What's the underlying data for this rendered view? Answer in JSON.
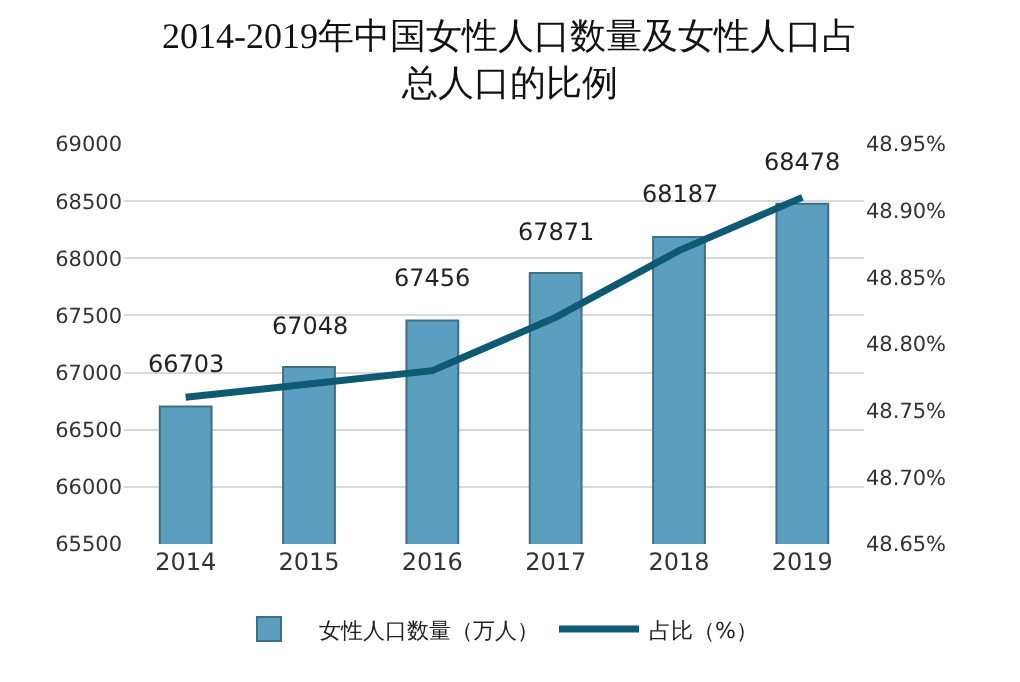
{
  "chart_data": {
    "type": "bar",
    "title": "2014-2019年中国女性人口数量及女性人口占总人口的比例",
    "categories": [
      "2014",
      "2015",
      "2016",
      "2017",
      "2018",
      "2019"
    ],
    "series": [
      {
        "name": "女性人口数量（万人）",
        "color": "#5b9ec0",
        "values": [
          66703,
          67048,
          67456,
          67871,
          68187,
          68478
        ],
        "value_labels": [
          "66703",
          "67048",
          "67456",
          "67871",
          "68187",
          "68478"
        ]
      },
      {
        "name": "占比（%）",
        "type": "line",
        "axis": "y2",
        "color": "#0e5a73",
        "values": [
          48.76,
          48.77,
          48.78,
          48.82,
          48.87,
          48.91
        ]
      }
    ],
    "ylim": [
      65500,
      69000
    ],
    "yticks": [
      65500,
      66000,
      66500,
      67000,
      67500,
      68000,
      68500,
      69000
    ],
    "y2lim": [
      48.65,
      48.95
    ],
    "y2ticks": [
      {
        "value": 48.65,
        "label": "48.65%"
      },
      {
        "value": 48.7,
        "label": "48.70%"
      },
      {
        "value": 48.75,
        "label": "48.75%"
      },
      {
        "value": 48.8,
        "label": "48.80%"
      },
      {
        "value": 48.85,
        "label": "48.85%"
      },
      {
        "value": 48.9,
        "label": "48.90%"
      },
      {
        "value": 48.95,
        "label": "48.95%"
      }
    ],
    "grid": "y",
    "legend": "bottom",
    "marker": "none",
    "line_style": "solid"
  }
}
